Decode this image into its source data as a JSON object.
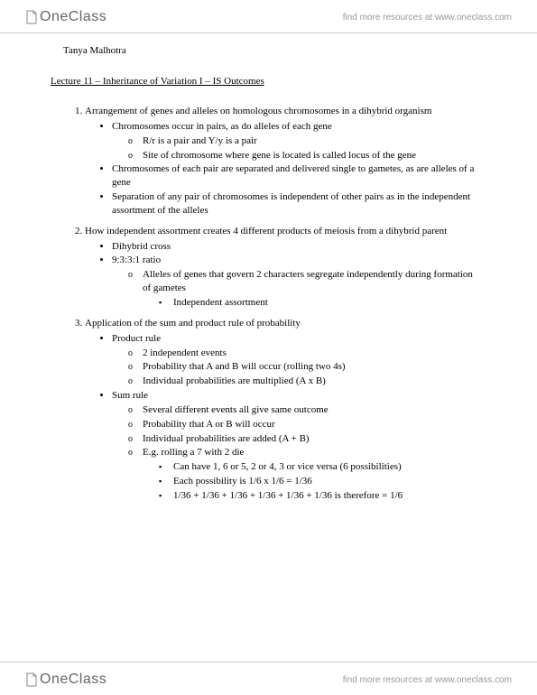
{
  "brand": {
    "logo_text": "OneClass",
    "tagline": "find more resources at www.oneclass.com"
  },
  "author": "Tanya Malhotra",
  "title": "Lecture 11 – Inheritance of Variation I – IS Outcomes",
  "sections": [
    {
      "text": "Arrangement of genes and alleles on homologous chromosomes in a dihybrid organism",
      "bullets": [
        {
          "text": "Chromosomes occur in pairs, as do alleles of each gene",
          "circles": [
            {
              "text": "R/r is a pair and Y/y is a pair"
            },
            {
              "text": "Site of chromosome where gene is located is called locus of the gene"
            }
          ]
        },
        {
          "text": "Chromosomes of each pair are separated and delivered single to gametes, as are alleles of a gene"
        },
        {
          "text": "Separation of any pair of chromosomes is independent of other pairs as in the independent assortment of the alleles"
        }
      ]
    },
    {
      "text": "How independent assortment creates 4 different products of meiosis from a dihybrid parent",
      "bullets": [
        {
          "text": "Dihybrid cross"
        },
        {
          "text": "9:3:3:1 ratio",
          "circles": [
            {
              "text": "Alleles of genes that govern 2 characters segregate independently during formation of gametes",
              "squares": [
                {
                  "text": "Independent assortment"
                }
              ]
            }
          ]
        }
      ]
    },
    {
      "text": "Application of the sum and product rule of probability",
      "bullets": [
        {
          "text": "Product rule",
          "circles": [
            {
              "text": "2 independent events"
            },
            {
              "text": "Probability that A and B will occur (rolling two 4s)"
            },
            {
              "text": "Individual probabilities are multiplied (A x B)"
            }
          ]
        },
        {
          "text": "Sum rule",
          "circles": [
            {
              "text": "Several different events all give same outcome"
            },
            {
              "text": "Probability that A or B will occur"
            },
            {
              "text": "Individual probabilities are added (A + B)"
            },
            {
              "text": "E.g. rolling a 7 with 2 die",
              "squares": [
                {
                  "text": "Can have 1, 6 or 5, 2 or 4, 3 or vice versa (6 possibilities)"
                },
                {
                  "text": "Each possibility is 1/6 x 1/6 = 1/36"
                },
                {
                  "text": "1/36 + 1/36 + 1/36 + 1/36 + 1/36 + 1/36 is therefore = 1/6"
                }
              ]
            }
          ]
        }
      ]
    }
  ]
}
